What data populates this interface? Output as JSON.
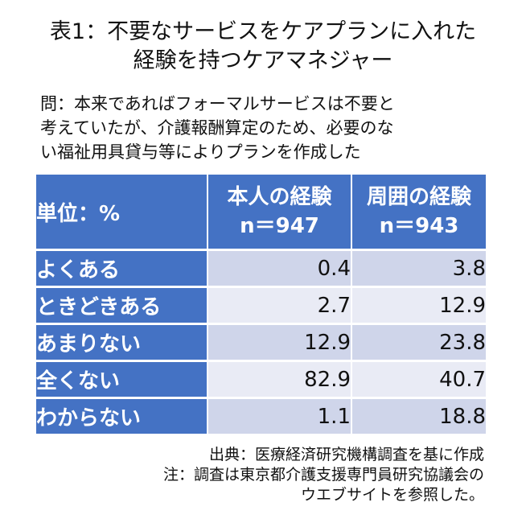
{
  "title": {
    "line1": "表1：不要なサービスをケアプランに入れた",
    "line2": "経験を持つケアマネジャー"
  },
  "question": {
    "line1": "問：本来であればフォーマルサービスは不要と",
    "line2": "考えていたが、介護報酬算定のため、必要のな",
    "line3": "い福祉用具貸与等によりプランを作成した"
  },
  "table": {
    "unit_header": "単位：%",
    "columns": [
      {
        "name": "本人の経験",
        "n": "n＝947"
      },
      {
        "name": "周囲の経験",
        "n": "n＝943"
      }
    ],
    "rows": [
      {
        "label": "よくある",
        "values": [
          "0.4",
          "3.8"
        ]
      },
      {
        "label": "ときどきある",
        "values": [
          "2.7",
          "12.9"
        ]
      },
      {
        "label": "あまりない",
        "values": [
          "12.9",
          "23.8"
        ]
      },
      {
        "label": "全くない",
        "values": [
          "82.9",
          "40.7"
        ]
      },
      {
        "label": "わからない",
        "values": [
          "1.1",
          "18.8"
        ]
      }
    ]
  },
  "notes": {
    "source": "出典：医療経済研究機構調査を基に作成",
    "note_line1": "注：調査は東京都介護支援専門員研究協議会の",
    "note_line2": "ウエブサイトを参照した。"
  },
  "colors": {
    "header_blue": "#4472c4",
    "row_light_a": "#cfd5ea",
    "row_light_b": "#e9ebf5"
  }
}
